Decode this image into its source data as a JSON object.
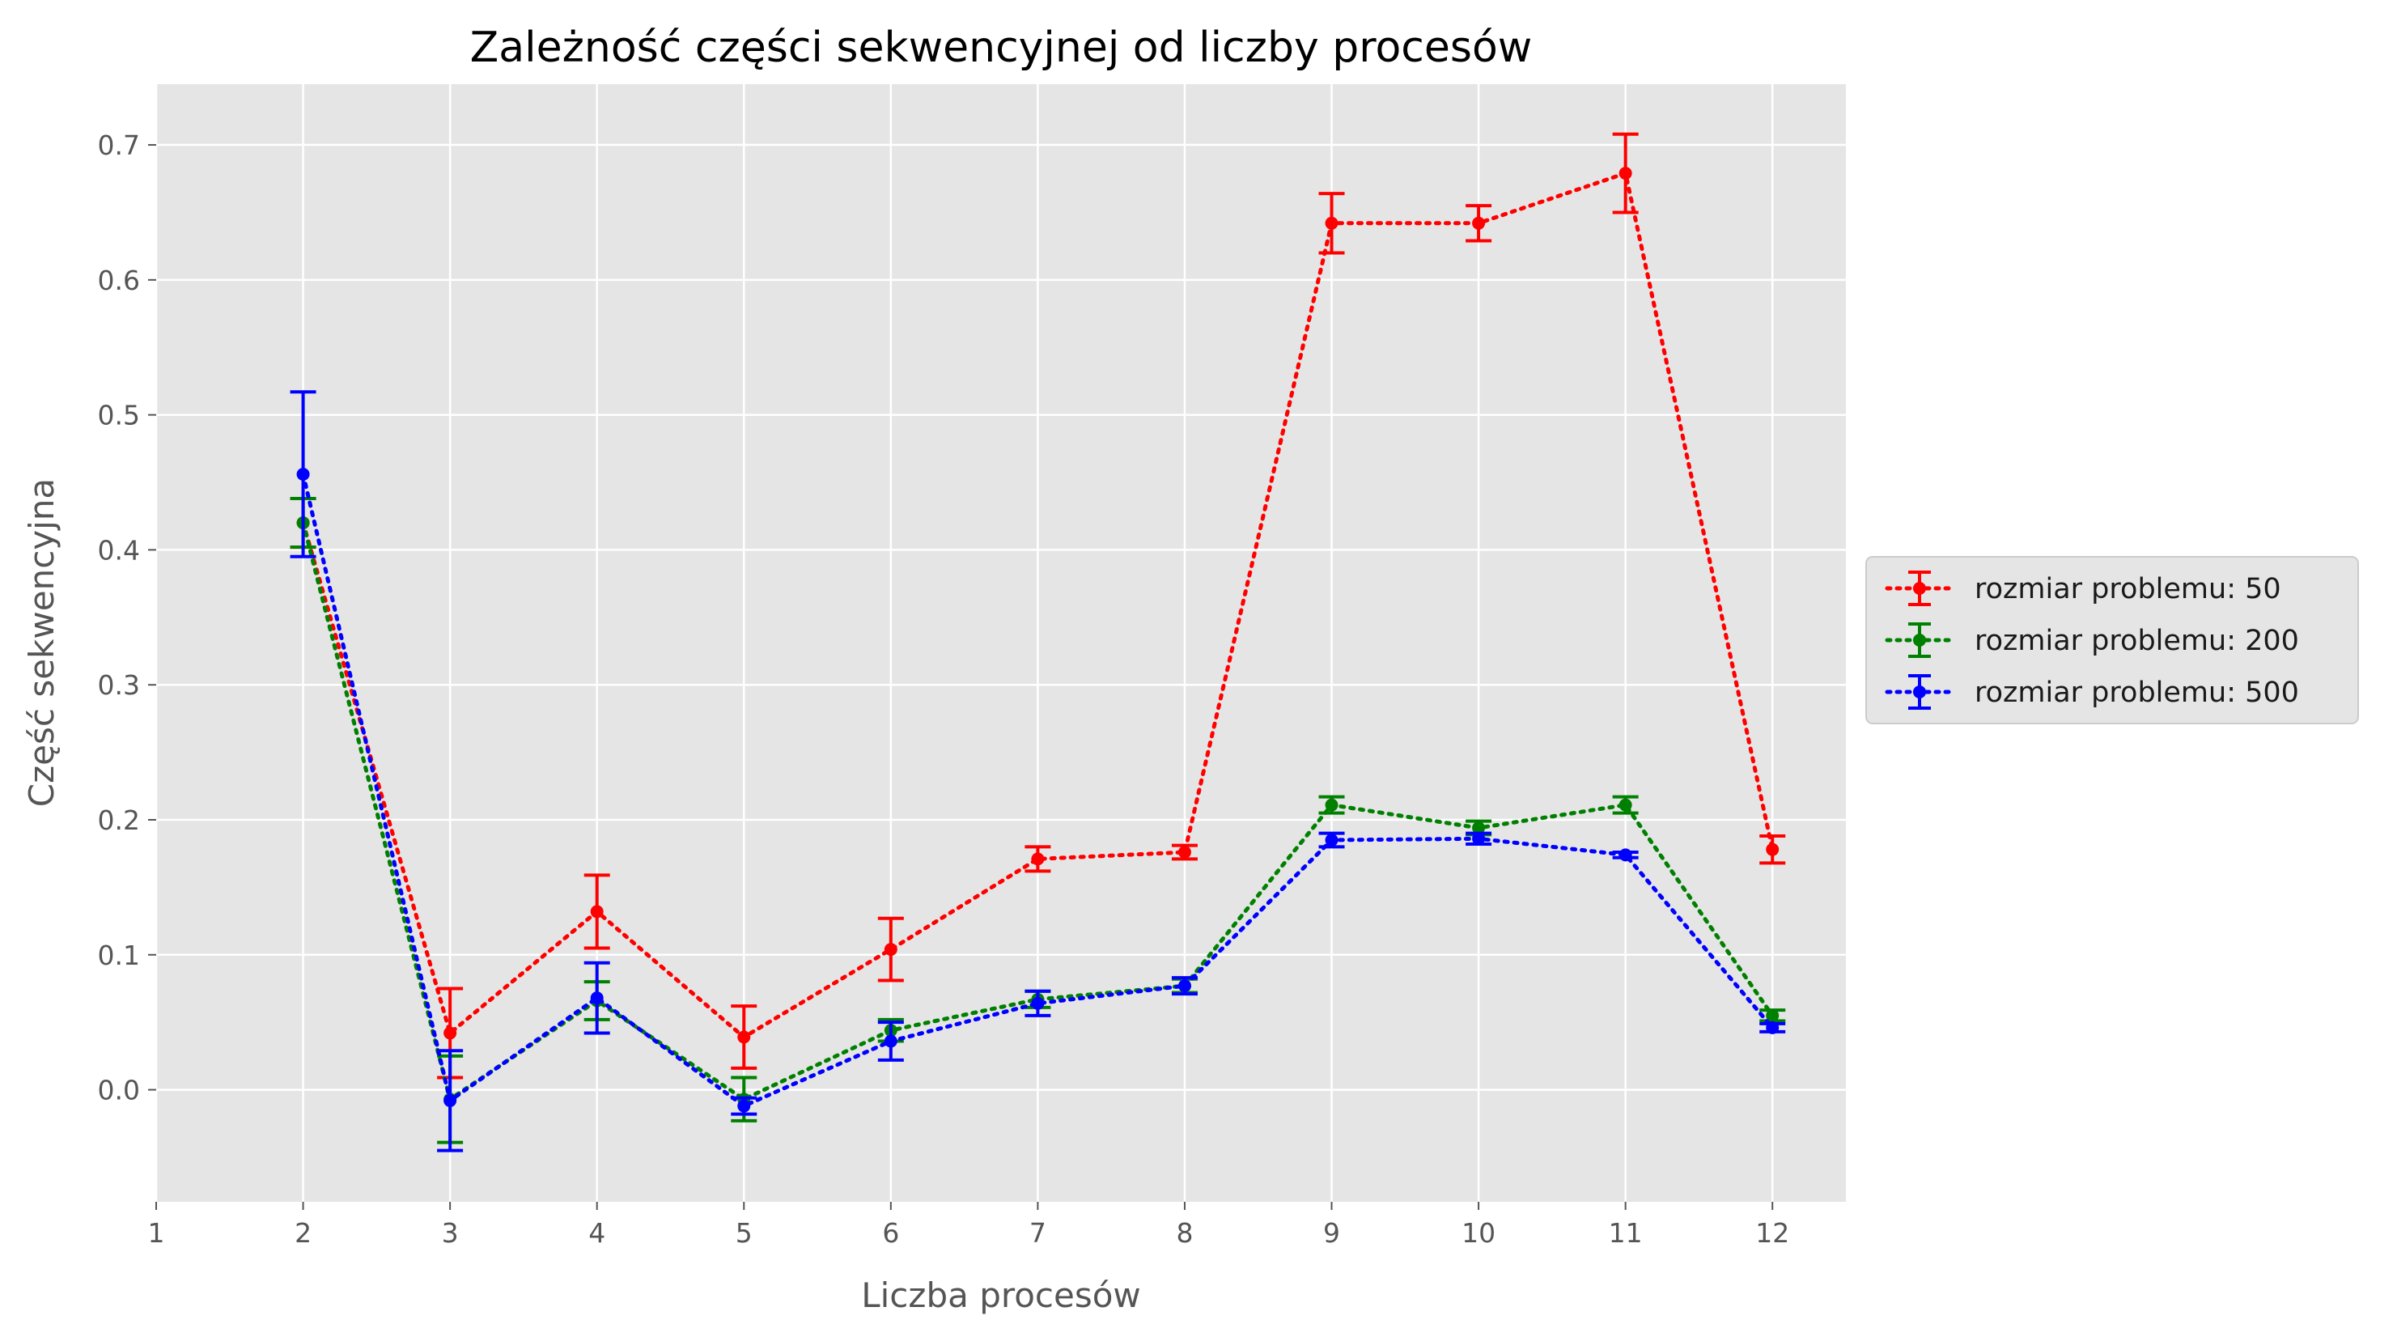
{
  "chart_data": {
    "type": "line",
    "title": "Zależność części sekwencyjnej od liczby procesów",
    "xlabel": "Liczba procesów",
    "ylabel": "Część sekwencyjna",
    "xlim": [
      1,
      12.5
    ],
    "ylim": [
      -0.083,
      0.745
    ],
    "x_ticks": [
      1,
      2,
      3,
      4,
      5,
      6,
      7,
      8,
      9,
      10,
      11,
      12
    ],
    "y_ticks": [
      0.0,
      0.1,
      0.2,
      0.3,
      0.4,
      0.5,
      0.6,
      0.7
    ],
    "y_tick_labels": [
      "0.0",
      "0.1",
      "0.2",
      "0.3",
      "0.4",
      "0.5",
      "0.6",
      "0.7"
    ],
    "grid": true,
    "legend_position": "right, outside plot",
    "x": [
      2,
      3,
      4,
      5,
      6,
      7,
      8,
      9,
      10,
      11,
      12
    ],
    "series": [
      {
        "name": "rozmiar problemu: 50",
        "color": "#ff0000",
        "values": [
          0.42,
          0.042,
          0.132,
          0.039,
          0.104,
          0.171,
          0.176,
          0.642,
          0.642,
          0.679,
          0.178
        ],
        "errors": [
          0.018,
          0.033,
          0.027,
          0.023,
          0.023,
          0.009,
          0.005,
          0.022,
          0.013,
          0.029,
          0.01
        ]
      },
      {
        "name": "rozmiar problemu: 200",
        "color": "#008000",
        "values": [
          0.42,
          -0.007,
          0.066,
          -0.007,
          0.044,
          0.067,
          0.077,
          0.211,
          0.194,
          0.211,
          0.055
        ],
        "errors": [
          0.018,
          0.032,
          0.014,
          0.016,
          0.008,
          0.006,
          0.005,
          0.006,
          0.005,
          0.006,
          0.004
        ]
      },
      {
        "name": "rozmiar problemu: 500",
        "color": "#0000ff",
        "values": [
          0.456,
          -0.008,
          0.068,
          -0.012,
          0.036,
          0.064,
          0.077,
          0.185,
          0.186,
          0.174,
          0.046
        ],
        "errors": [
          0.061,
          0.037,
          0.026,
          0.006,
          0.014,
          0.009,
          0.006,
          0.005,
          0.004,
          0.002,
          0.003
        ]
      }
    ]
  }
}
